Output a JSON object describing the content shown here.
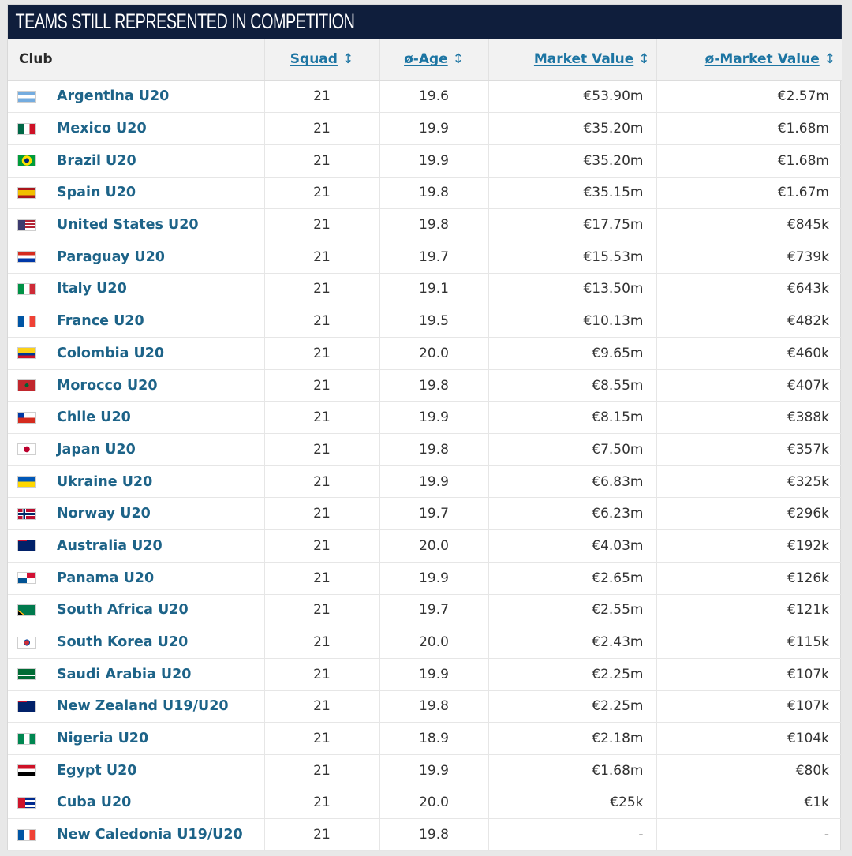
{
  "title": "TEAMS STILL REPRESENTED IN COMPETITION",
  "columns": {
    "club": "Club",
    "squad": "Squad",
    "age": "ø-Age",
    "market_value": "Market Value",
    "avg_market_value": "ø-Market Value"
  },
  "sort_icon": "sort-arrows-icon",
  "rows": [
    {
      "club": "Argentina U20",
      "flag": "argentina-flag-icon",
      "squad": "21",
      "age": "19.6",
      "mv": "€53.90m",
      "avg": "€2.57m"
    },
    {
      "club": "Mexico U20",
      "flag": "mexico-flag-icon",
      "squad": "21",
      "age": "19.9",
      "mv": "€35.20m",
      "avg": "€1.68m"
    },
    {
      "club": "Brazil U20",
      "flag": "brazil-flag-icon",
      "squad": "21",
      "age": "19.9",
      "mv": "€35.20m",
      "avg": "€1.68m"
    },
    {
      "club": "Spain U20",
      "flag": "spain-flag-icon",
      "squad": "21",
      "age": "19.8",
      "mv": "€35.15m",
      "avg": "€1.67m"
    },
    {
      "club": "United States U20",
      "flag": "united-states-flag-icon",
      "squad": "21",
      "age": "19.8",
      "mv": "€17.75m",
      "avg": "€845k"
    },
    {
      "club": "Paraguay U20",
      "flag": "paraguay-flag-icon",
      "squad": "21",
      "age": "19.7",
      "mv": "€15.53m",
      "avg": "€739k"
    },
    {
      "club": "Italy U20",
      "flag": "italy-flag-icon",
      "squad": "21",
      "age": "19.1",
      "mv": "€13.50m",
      "avg": "€643k"
    },
    {
      "club": "France U20",
      "flag": "france-flag-icon",
      "squad": "21",
      "age": "19.5",
      "mv": "€10.13m",
      "avg": "€482k"
    },
    {
      "club": "Colombia U20",
      "flag": "colombia-flag-icon",
      "squad": "21",
      "age": "20.0",
      "mv": "€9.65m",
      "avg": "€460k"
    },
    {
      "club": "Morocco U20",
      "flag": "morocco-flag-icon",
      "squad": "21",
      "age": "19.8",
      "mv": "€8.55m",
      "avg": "€407k"
    },
    {
      "club": "Chile U20",
      "flag": "chile-flag-icon",
      "squad": "21",
      "age": "19.9",
      "mv": "€8.15m",
      "avg": "€388k"
    },
    {
      "club": "Japan U20",
      "flag": "japan-flag-icon",
      "squad": "21",
      "age": "19.8",
      "mv": "€7.50m",
      "avg": "€357k"
    },
    {
      "club": "Ukraine U20",
      "flag": "ukraine-flag-icon",
      "squad": "21",
      "age": "19.9",
      "mv": "€6.83m",
      "avg": "€325k"
    },
    {
      "club": "Norway U20",
      "flag": "norway-flag-icon",
      "squad": "21",
      "age": "19.7",
      "mv": "€6.23m",
      "avg": "€296k"
    },
    {
      "club": "Australia U20",
      "flag": "australia-flag-icon",
      "squad": "21",
      "age": "20.0",
      "mv": "€4.03m",
      "avg": "€192k"
    },
    {
      "club": "Panama U20",
      "flag": "panama-flag-icon",
      "squad": "21",
      "age": "19.9",
      "mv": "€2.65m",
      "avg": "€126k"
    },
    {
      "club": "South Africa U20",
      "flag": "south-africa-flag-icon",
      "squad": "21",
      "age": "19.7",
      "mv": "€2.55m",
      "avg": "€121k"
    },
    {
      "club": "South Korea U20",
      "flag": "south-korea-flag-icon",
      "squad": "21",
      "age": "20.0",
      "mv": "€2.43m",
      "avg": "€115k"
    },
    {
      "club": "Saudi Arabia U20",
      "flag": "saudi-arabia-flag-icon",
      "squad": "21",
      "age": "19.9",
      "mv": "€2.25m",
      "avg": "€107k"
    },
    {
      "club": "New Zealand U19/U20",
      "flag": "new-zealand-flag-icon",
      "squad": "21",
      "age": "19.8",
      "mv": "€2.25m",
      "avg": "€107k"
    },
    {
      "club": "Nigeria U20",
      "flag": "nigeria-flag-icon",
      "squad": "21",
      "age": "18.9",
      "mv": "€2.18m",
      "avg": "€104k"
    },
    {
      "club": "Egypt U20",
      "flag": "egypt-flag-icon",
      "squad": "21",
      "age": "19.9",
      "mv": "€1.68m",
      "avg": "€80k"
    },
    {
      "club": "Cuba U20",
      "flag": "cuba-flag-icon",
      "squad": "21",
      "age": "20.0",
      "mv": "€25k",
      "avg": "€1k"
    },
    {
      "club": "New Caledonia U19/U20",
      "flag": "new-caledonia-flag-icon",
      "squad": "21",
      "age": "19.8",
      "mv": "-",
      "avg": "-"
    }
  ]
}
